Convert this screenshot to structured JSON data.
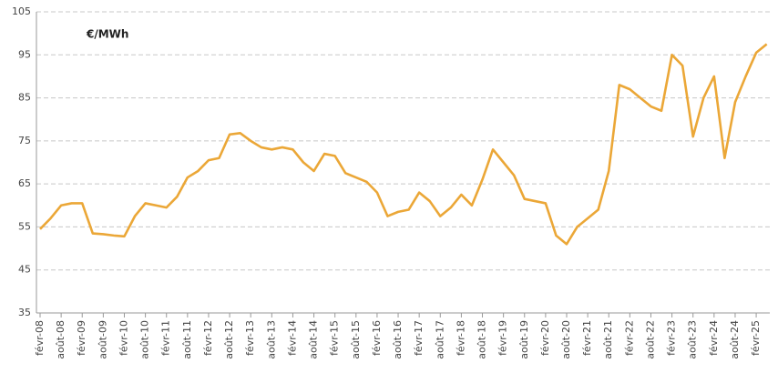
{
  "chart_data": {
    "type": "line",
    "annotation": "€/MWh",
    "categories": [
      "févr-08",
      null,
      "août-08",
      null,
      "févr-09",
      null,
      "août-09",
      null,
      "févr-10",
      null,
      "août-10",
      null,
      "févr-11",
      null,
      "août-11",
      null,
      "févr-12",
      null,
      "août-12",
      null,
      "févr-13",
      null,
      "août-13",
      null,
      "févr-14",
      null,
      "août-14",
      null,
      "févr-15",
      null,
      "août-15",
      null,
      "févr-16",
      null,
      "août-16",
      null,
      "févr-17",
      null,
      "août-17",
      null,
      "févr-18",
      null,
      "août-18",
      null,
      "févr-19",
      null,
      "août-19",
      null,
      "févr-20",
      null,
      "août-20",
      null,
      "févr-21",
      null,
      "août-21",
      null,
      "févr-22",
      null,
      "août-22",
      null,
      "févr-23",
      null,
      "août-23",
      null,
      "févr-24",
      null,
      "août-24",
      null,
      "févr-25",
      null
    ],
    "values": [
      54.5,
      57,
      60,
      60.5,
      60.5,
      53.5,
      53.3,
      53,
      52.8,
      57.5,
      60.5,
      60,
      59.5,
      62,
      66.5,
      68,
      70.5,
      71,
      76.5,
      76.8,
      75,
      73.5,
      73,
      73.5,
      73,
      70,
      68,
      72,
      71.5,
      67.5,
      66.5,
      65.5,
      63,
      57.5,
      58.5,
      59,
      63,
      61,
      57.5,
      59.5,
      62.5,
      60,
      66,
      73,
      70,
      67,
      61.5,
      61,
      60.5,
      53,
      51,
      55,
      57,
      59,
      68,
      88,
      87,
      85,
      83,
      82,
      95,
      92.5,
      76,
      85,
      90,
      71,
      84,
      90,
      95.5,
      97.5
    ],
    "color": "#eba737",
    "ylim": [
      35,
      105
    ],
    "yticks": [
      35,
      45,
      55,
      65,
      75,
      85,
      95,
      105
    ],
    "grid": true
  }
}
